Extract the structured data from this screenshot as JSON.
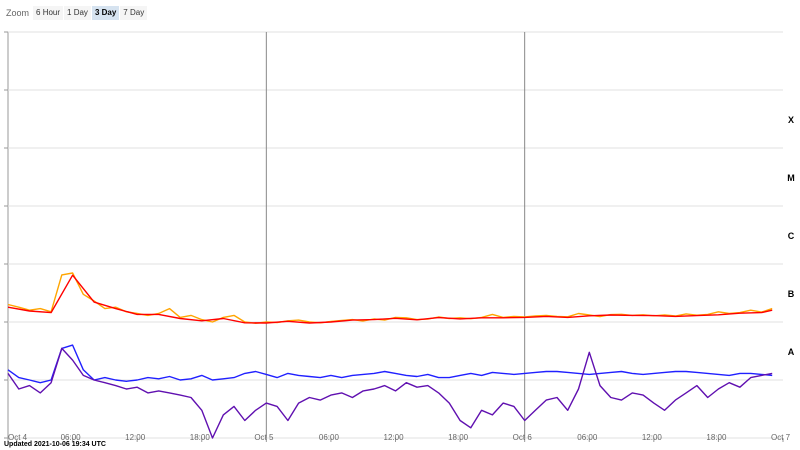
{
  "zoom": {
    "label": "Zoom",
    "options": [
      "6 Hour",
      "1 Day",
      "3 Day",
      "7 Day"
    ],
    "selected": "3 Day"
  },
  "updated_text": "Updated 2021-10-06 19:34 UTC",
  "colors": {
    "long_primary": "#ffa500",
    "long_secondary": "#ff0000",
    "short_primary": "#2020ff",
    "short_secondary": "#6010b0",
    "grid": "#e0e0e0",
    "day_line": "#888888"
  },
  "chart_data": {
    "type": "line",
    "x_axis": {
      "type": "datetime",
      "range": [
        "2021-10-04 00:00",
        "2021-10-07 00:00"
      ],
      "tick_labels": [
        "Oct 4",
        "06:00",
        "12:00",
        "18:00",
        "Oct 5",
        "06:00",
        "12:00",
        "18:00",
        "Oct 6",
        "06:00",
        "12:00",
        "18:00",
        "Oct 7"
      ],
      "day_boundaries": [
        "2021-10-05 00:00",
        "2021-10-06 00:00"
      ]
    },
    "y_axis": {
      "scale": "log",
      "range_watts_m2": [
        1e-09,
        0.01
      ],
      "class_labels": [
        "A",
        "B",
        "C",
        "M",
        "X"
      ],
      "grid": true
    },
    "series": [
      {
        "color": "#ffa500",
        "segments": [
          {
            "x": [
              0,
              1,
              2,
              3,
              4,
              5,
              6,
              7,
              8,
              9,
              10,
              11,
              12,
              13,
              14,
              15,
              16,
              17,
              18,
              19,
              20,
              21,
              22,
              23,
              24,
              25,
              26,
              27,
              28,
              29,
              30,
              31,
              32,
              33,
              34,
              35,
              36,
              37,
              38,
              39,
              40,
              41,
              42,
              43,
              44,
              45,
              46,
              47,
              48,
              49,
              50,
              51,
              52,
              53,
              54,
              55,
              56,
              57,
              58,
              59,
              60,
              61,
              62,
              63,
              64,
              65,
              66,
              67,
              68,
              69,
              70,
              71
            ],
            "y": [
              2e-07,
              1.8e-07,
              1.6e-07,
              1.7e-07,
              1.5e-07,
              6.5e-07,
              7e-07,
              3e-07,
              2.3e-07,
              1.7e-07,
              1.8e-07,
              1.5e-07,
              1.4e-07,
              1.3e-07,
              1.4e-07,
              1.7e-07,
              1.2e-07,
              1.3e-07,
              1.1e-07,
              1e-07,
              1.2e-07,
              1.3e-07,
              1e-07,
              9.5e-08,
              1e-07,
              9.8e-08,
              1.05e-07,
              1.08e-07,
              1e-07,
              9.7e-08,
              1.02e-07,
              1.06e-07,
              1.1e-07,
              1.04e-07,
              1.13e-07,
              1.08e-07,
              1.2e-07,
              1.18e-07,
              1.1e-07,
              1.12e-07,
              1.22e-07,
              1.15e-07,
              1.18e-07,
              1.14e-07,
              1.2e-07,
              1.35e-07,
              1.2e-07,
              1.25e-07,
              1.22e-07,
              1.27e-07,
              1.3e-07,
              1.25e-07,
              1.23e-07,
              1.4e-07,
              1.32e-07,
              1.24e-07,
              1.34e-07,
              1.36e-07,
              1.3e-07,
              1.33e-07,
              1.28e-07,
              1.32e-07,
              1.27e-07,
              1.38e-07,
              1.31e-07,
              1.35e-07,
              1.5e-07,
              1.4e-07,
              1.45e-07,
              1.6e-07,
              1.48e-07,
              1.7e-07
            ]
          }
        ]
      },
      {
        "color": "#ff0000",
        "segments": [
          {
            "x": [
              0,
              2,
              4,
              6,
              8,
              10,
              12,
              14,
              16,
              18,
              20,
              22,
              24,
              26,
              28,
              30,
              32,
              34,
              36,
              38,
              40,
              42,
              44,
              46,
              48,
              50,
              52,
              54,
              56,
              58,
              60,
              62,
              64,
              66,
              68,
              70,
              71
            ],
            "y": [
              1.8e-07,
              1.55e-07,
              1.45e-07,
              6.4e-07,
              2.2e-07,
              1.7e-07,
              1.35e-07,
              1.35e-07,
              1.15e-07,
              1.05e-07,
              1.15e-07,
              9.7e-08,
              9.6e-08,
              1.03e-07,
              9.6e-08,
              1e-07,
              1.08e-07,
              1.1e-07,
              1.16e-07,
              1.09e-07,
              1.19e-07,
              1.13e-07,
              1.18e-07,
              1.18e-07,
              1.2e-07,
              1.25e-07,
              1.2e-07,
              1.28e-07,
              1.32e-07,
              1.3e-07,
              1.29e-07,
              1.25e-07,
              1.29e-07,
              1.33e-07,
              1.42e-07,
              1.45e-07,
              1.6e-07
            ]
          }
        ]
      },
      {
        "color": "#2020ff",
        "segments": [
          {
            "x": [
              0,
              1,
              2,
              3,
              4,
              5,
              6,
              7,
              8,
              9,
              10,
              11,
              12,
              13,
              14,
              15,
              16,
              17,
              18,
              19,
              20,
              21,
              22,
              23,
              24,
              25,
              26,
              27,
              28,
              29,
              30,
              31,
              32,
              33,
              34,
              35,
              36,
              37,
              38,
              39,
              40,
              41,
              42,
              43,
              44,
              45,
              46,
              47,
              48,
              49,
              50,
              51,
              52,
              53,
              54,
              55,
              56,
              57,
              58,
              59,
              60,
              61,
              62,
              63,
              64,
              65,
              66,
              67,
              68,
              69,
              70,
              71
            ],
            "y": [
              1.5e-08,
              1.1e-08,
              1e-08,
              9e-09,
              1e-08,
              3.5e-08,
              4e-08,
              1.5e-08,
              1e-08,
              1.1e-08,
              1e-08,
              9.5e-09,
              1e-08,
              1.1e-08,
              1.05e-08,
              1.15e-08,
              1e-08,
              1.05e-08,
              1.2e-08,
              1e-08,
              1.05e-08,
              1.1e-08,
              1.3e-08,
              1.4e-08,
              1.25e-08,
              1.1e-08,
              1.3e-08,
              1.2e-08,
              1.15e-08,
              1.1e-08,
              1.2e-08,
              1.1e-08,
              1.2e-08,
              1.25e-08,
              1.3e-08,
              1.4e-08,
              1.3e-08,
              1.2e-08,
              1.15e-08,
              1.25e-08,
              1.1e-08,
              1.1e-08,
              1.2e-08,
              1.3e-08,
              1.2e-08,
              1.35e-08,
              1.3e-08,
              1.25e-08,
              1.3e-08,
              1.35e-08,
              1.4e-08,
              1.4e-08,
              1.35e-08,
              1.3e-08,
              1.25e-08,
              1.3e-08,
              1.35e-08,
              1.4e-08,
              1.3e-08,
              1.25e-08,
              1.3e-08,
              1.35e-08,
              1.4e-08,
              1.4e-08,
              1.35e-08,
              1.3e-08,
              1.25e-08,
              1.2e-08,
              1.3e-08,
              1.3e-08,
              1.25e-08,
              1.2e-08
            ]
          }
        ]
      },
      {
        "color": "#6010b0",
        "segments": [
          {
            "x": [
              0,
              1,
              2,
              3,
              4,
              5,
              6,
              7,
              8,
              9,
              10,
              11,
              12,
              13,
              14,
              15,
              16,
              17,
              18,
              19,
              20,
              21,
              22,
              23,
              24,
              25,
              26,
              27,
              28,
              29,
              30,
              31,
              32,
              33,
              34,
              35,
              36,
              37,
              38,
              39,
              40,
              41,
              42,
              43,
              44,
              45,
              46,
              47,
              48,
              49,
              50,
              51,
              52,
              53,
              54,
              55,
              56,
              57,
              58,
              59,
              60,
              61,
              62,
              63,
              64,
              65,
              66,
              67,
              68,
              69,
              70,
              71
            ],
            "y": [
              1.3e-08,
              7e-09,
              8e-09,
              6e-09,
              9e-09,
              3.5e-08,
              2.2e-08,
              1.2e-08,
              1e-08,
              9e-09,
              8e-09,
              7e-09,
              7.5e-09,
              6e-09,
              6.5e-09,
              6e-09,
              5.5e-09,
              5e-09,
              3e-09,
              1e-09,
              2.5e-09,
              3.5e-09,
              2e-09,
              3e-09,
              4e-09,
              3.5e-09,
              2e-09,
              4e-09,
              5e-09,
              4.5e-09,
              5.5e-09,
              6e-09,
              5e-09,
              6.5e-09,
              7e-09,
              8e-09,
              6.5e-09,
              9e-09,
              7.5e-09,
              8e-09,
              6e-09,
              4e-09,
              2e-09,
              1.5e-09,
              3e-09,
              2.5e-09,
              4e-09,
              3.5e-09,
              2e-09,
              3e-09,
              4.5e-09,
              5e-09,
              3e-09,
              7e-09,
              3e-08,
              8e-09,
              5e-09,
              4.5e-09,
              6e-09,
              5.5e-09,
              4e-09,
              3e-09,
              4.5e-09,
              6e-09,
              8e-09,
              5e-09,
              7e-09,
              9e-09,
              7.5e-09,
              1.1e-08,
              1.2e-08,
              1.3e-08
            ]
          }
        ]
      }
    ]
  }
}
